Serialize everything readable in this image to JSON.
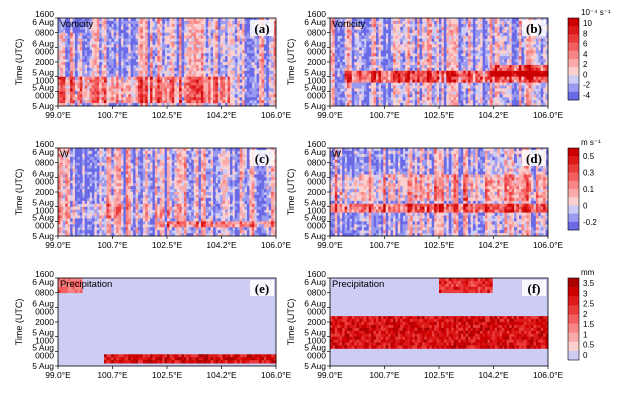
{
  "chart_data": {
    "type": "heatmap",
    "panels": [
      {
        "label": "(a)",
        "title": "Vorticity",
        "field": "vorticity",
        "colorbar": "vorticity",
        "events": [
          {
            "lon": [
              99.0,
              104.5
            ],
            "t0": 0.05,
            "t1": 0.32,
            "amp": 0.6
          },
          {
            "lon": [
              99.0,
              99.8
            ],
            "t0": 0.85,
            "t1": 1.0,
            "amp": -0.6
          }
        ]
      },
      {
        "label": "(b)",
        "title": "Vorticity",
        "field": "vorticity",
        "colorbar": "vorticity",
        "events": [
          {
            "lon": [
              99.5,
              106.0
            ],
            "t0": 0.28,
            "t1": 0.4,
            "amp": 0.9
          },
          {
            "lon": [
              104.2,
              106.0
            ],
            "t0": 0.35,
            "t1": 0.45,
            "amp": 0.9
          }
        ]
      },
      {
        "label": "(c)",
        "title": "W",
        "field": "w",
        "colorbar": "w",
        "events": [
          {
            "lon": [
              102.2,
              106.0
            ],
            "t0": 0.1,
            "t1": 0.18,
            "amp": 0.6
          },
          {
            "lon": [
              99.0,
              103.0
            ],
            "t0": 0.2,
            "t1": 0.35,
            "amp": 0.3
          }
        ]
      },
      {
        "label": "(d)",
        "title": "W",
        "field": "w",
        "colorbar": "w",
        "events": [
          {
            "lon": [
              99.0,
              106.0
            ],
            "t0": 0.28,
            "t1": 0.36,
            "amp": 0.9
          },
          {
            "lon": [
              99.0,
              106.0
            ],
            "t0": 0.4,
            "t1": 0.7,
            "amp": 0.4
          }
        ]
      },
      {
        "label": "(e)",
        "title": "Precipitation",
        "field": "precipitation",
        "colorbar": "precip",
        "events": [
          {
            "lon": [
              100.5,
              106.0
            ],
            "t0": 0.05,
            "t1": 0.15,
            "amp": 3.5
          },
          {
            "lon": [
              99.0,
              99.8
            ],
            "t0": 0.85,
            "t1": 1.0,
            "amp": 2.0
          }
        ]
      },
      {
        "label": "(f)",
        "title": "Precipitation",
        "field": "precipitation",
        "colorbar": "precip",
        "events": [
          {
            "lon": [
              99.0,
              106.0
            ],
            "t0": 0.2,
            "t1": 0.55,
            "amp": 3.5
          },
          {
            "lon": [
              102.5,
              104.2
            ],
            "t0": 0.85,
            "t1": 1.0,
            "amp": 3.0
          }
        ]
      }
    ],
    "xlabel": "",
    "ylabel": "Time (UTC)",
    "xlim": [
      99.0,
      106.0
    ],
    "xticks": [
      "99.0°E",
      "100.7°E",
      "102.5°E",
      "104.2°E",
      "106.0°E"
    ],
    "yticks": [
      {
        "lines": [
          "1600",
          "6 Aug"
        ]
      },
      {
        "lines": [
          "0800"
        ]
      },
      {
        "lines": [
          "6 Aug",
          "0000"
        ]
      },
      {
        "lines": [
          "2000"
        ]
      },
      {
        "lines": [
          "5 Aug",
          "1000"
        ]
      },
      {
        "lines": [
          "5 Aug",
          "0000"
        ]
      },
      {
        "lines": [
          "5 Aug"
        ]
      }
    ],
    "colorbars": {
      "vorticity": {
        "unit": "10⁻⁴ s⁻¹",
        "labels": [
          "10",
          "8",
          "6",
          "4",
          "2",
          "0",
          "-2",
          "-4"
        ],
        "colors": [
          "#cc0000",
          "#dd1a1a",
          "#ea3b3b",
          "#f35f5f",
          "#f88585",
          "#fbaaaa",
          "#fdd0d0",
          "#ccccf5",
          "#9a9af0",
          "#6a6ae6"
        ]
      },
      "w": {
        "unit": "m s⁻¹",
        "labels": [
          "0.5",
          "0.3",
          "0.1",
          "0",
          "-0.2"
        ],
        "colors": [
          "#cc0000",
          "#dd1a1a",
          "#ea3b3b",
          "#f35f5f",
          "#f88585",
          "#fbaaaa",
          "#fdd0d0",
          "#ccccf5",
          "#9a9af0",
          "#6a6ae6"
        ]
      },
      "precip": {
        "unit": "mm",
        "labels": [
          "3.5",
          "3",
          "2.5",
          "2",
          "1.5",
          "1",
          "0.5",
          "0"
        ],
        "colors": [
          "#aa0000",
          "#cc0000",
          "#dd1a1a",
          "#ea3b3b",
          "#f35f5f",
          "#f88585",
          "#fbaaaa",
          "#fdd0d0",
          "#ccccf5"
        ]
      }
    }
  }
}
